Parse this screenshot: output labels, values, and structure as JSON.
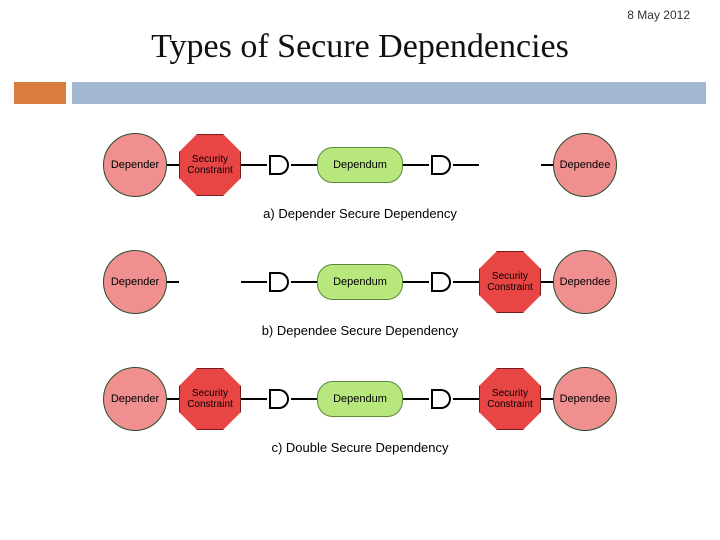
{
  "date": "8 May 2012",
  "title": "Types of Secure Dependencies",
  "bars": {
    "orange": "#d97d3f",
    "blue": "#a3b7d0"
  },
  "colors": {
    "circle_fill": "#f08f8f",
    "circle_stroke": "#2a4a2a",
    "rect_fill": "#b8e87d",
    "rect_stroke": "#5a8a3a",
    "oct_fill": "#e84545",
    "oct_stroke": "#7a1a1a",
    "line": "#000000"
  },
  "labels": {
    "depender": "Depender",
    "dependum": "Dependum",
    "dependee": "Dependee",
    "security": "Security\nConstraint"
  },
  "captions": {
    "a": "a) Depender Secure Dependency",
    "b": "b) Dependee Secure Dependency",
    "c": "c) Double Secure Dependency"
  },
  "layout": {
    "conn_short": 12,
    "conn_med": 26
  }
}
